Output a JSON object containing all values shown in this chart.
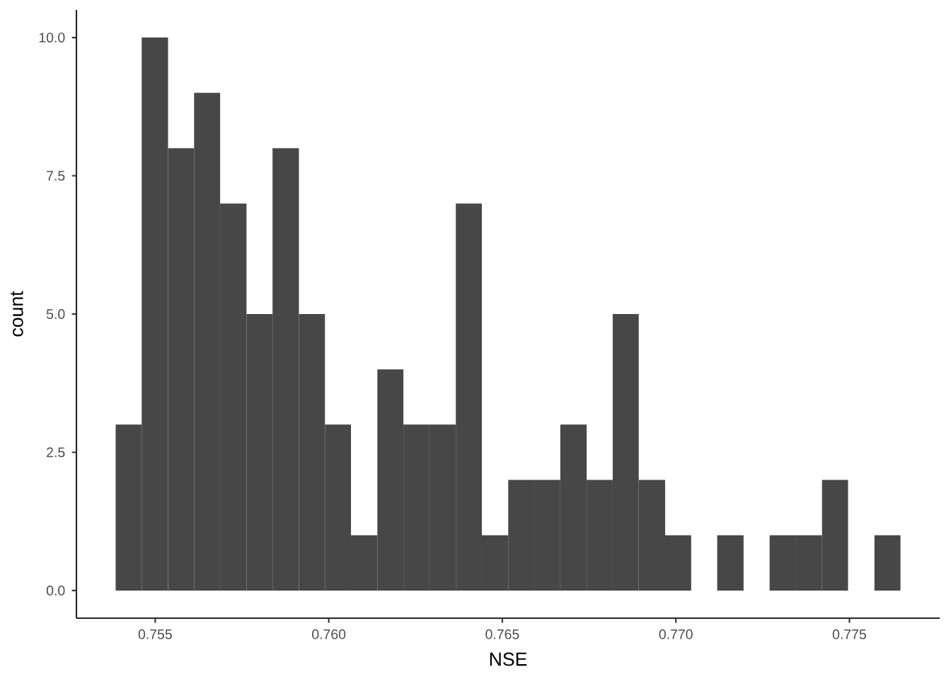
{
  "chart_data": {
    "type": "histogram",
    "xlabel": "NSE",
    "ylabel": "count",
    "color": "#474747",
    "bins": [
      0.75386,
      0.75461,
      0.75537,
      0.75612,
      0.75687,
      0.75763,
      0.75838,
      0.75914,
      0.75989,
      0.76064,
      0.7614,
      0.76215,
      0.7629,
      0.76366,
      0.76441,
      0.76517,
      0.76592,
      0.76667,
      0.76743,
      0.76818,
      0.76893,
      0.76969,
      0.77044,
      0.77119,
      0.77195,
      0.7727,
      0.77346,
      0.77421,
      0.77496,
      0.77572,
      0.77647
    ],
    "values": [
      3,
      10,
      8,
      9,
      7,
      5,
      8,
      5,
      3,
      1,
      4,
      3,
      3,
      7,
      1,
      2,
      2,
      3,
      2,
      5,
      2,
      1,
      0,
      1,
      0,
      1,
      1,
      2,
      0,
      1
    ],
    "xlim": [
      0.75273,
      0.7776
    ],
    "xticks": [
      0.755,
      {
        "value": 0.76,
        "label": "0.760"
      },
      0.765,
      {
        "value": 0.77,
        "label": "0.770"
      },
      0.775
    ],
    "ylim": [
      -0.5,
      10.5
    ],
    "yticks": [
      {
        "value": 0,
        "label": "0.0"
      },
      {
        "value": 2.5,
        "label": "2.5"
      },
      {
        "value": 5,
        "label": "5.0"
      },
      {
        "value": 7.5,
        "label": "7.5"
      },
      {
        "value": 10,
        "label": "10.0"
      }
    ]
  }
}
